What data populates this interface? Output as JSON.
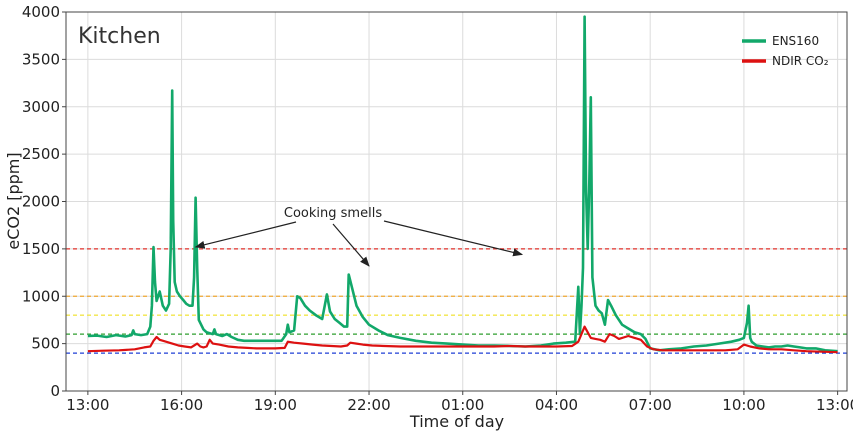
{
  "chart_data": {
    "type": "line",
    "title": "Kitchen",
    "xlabel": "Time of day",
    "ylabel": "eCO2 [ppm]",
    "ylim": [
      0,
      4000
    ],
    "xlim": [
      12.3,
      37.3
    ],
    "x_ticks": [
      {
        "value": 13,
        "label": "13:00"
      },
      {
        "value": 16,
        "label": "16:00"
      },
      {
        "value": 19,
        "label": "19:00"
      },
      {
        "value": 22,
        "label": "22:00"
      },
      {
        "value": 25,
        "label": "01:00"
      },
      {
        "value": 28,
        "label": "04:00"
      },
      {
        "value": 31,
        "label": "07:00"
      },
      {
        "value": 34,
        "label": "10:00"
      },
      {
        "value": 37,
        "label": "13:00"
      }
    ],
    "y_ticks": [
      0,
      500,
      1000,
      1500,
      2000,
      2500,
      3000,
      3500,
      4000
    ],
    "grid": true,
    "legend_position": "top-right",
    "thresholds": [
      {
        "value": 400,
        "color": "#1f3fd6"
      },
      {
        "value": 600,
        "color": "#2e9e2e"
      },
      {
        "value": 800,
        "color": "#f2e64a"
      },
      {
        "value": 1000,
        "color": "#f0a830"
      },
      {
        "value": 1500,
        "color": "#e0302a"
      }
    ],
    "series": [
      {
        "name": "ENS160",
        "color": "#12a86a",
        "points": [
          [
            13.0,
            580
          ],
          [
            13.3,
            585
          ],
          [
            13.6,
            570
          ],
          [
            13.9,
            590
          ],
          [
            14.2,
            575
          ],
          [
            14.4,
            590
          ],
          [
            14.45,
            640
          ],
          [
            14.5,
            600
          ],
          [
            14.7,
            590
          ],
          [
            14.9,
            600
          ],
          [
            15.0,
            680
          ],
          [
            15.05,
            900
          ],
          [
            15.1,
            1520
          ],
          [
            15.15,
            1150
          ],
          [
            15.2,
            950
          ],
          [
            15.3,
            1050
          ],
          [
            15.4,
            900
          ],
          [
            15.5,
            850
          ],
          [
            15.6,
            920
          ],
          [
            15.65,
            1500
          ],
          [
            15.7,
            3170
          ],
          [
            15.73,
            1800
          ],
          [
            15.78,
            1150
          ],
          [
            15.85,
            1050
          ],
          [
            15.95,
            1000
          ],
          [
            16.05,
            960
          ],
          [
            16.15,
            920
          ],
          [
            16.25,
            900
          ],
          [
            16.35,
            900
          ],
          [
            16.4,
            1200
          ],
          [
            16.45,
            2040
          ],
          [
            16.5,
            1300
          ],
          [
            16.55,
            750
          ],
          [
            16.7,
            650
          ],
          [
            16.8,
            620
          ],
          [
            16.9,
            610
          ],
          [
            17.0,
            600
          ],
          [
            17.05,
            650
          ],
          [
            17.1,
            600
          ],
          [
            17.3,
            580
          ],
          [
            17.45,
            600
          ],
          [
            17.6,
            570
          ],
          [
            17.8,
            540
          ],
          [
            18.0,
            530
          ],
          [
            18.3,
            530
          ],
          [
            18.6,
            530
          ],
          [
            18.9,
            530
          ],
          [
            19.2,
            530
          ],
          [
            19.35,
            600
          ],
          [
            19.4,
            700
          ],
          [
            19.45,
            620
          ],
          [
            19.6,
            640
          ],
          [
            19.7,
            1000
          ],
          [
            19.8,
            980
          ],
          [
            19.95,
            900
          ],
          [
            20.1,
            850
          ],
          [
            20.3,
            800
          ],
          [
            20.5,
            760
          ],
          [
            20.65,
            1020
          ],
          [
            20.75,
            840
          ],
          [
            20.9,
            760
          ],
          [
            21.05,
            720
          ],
          [
            21.2,
            680
          ],
          [
            21.3,
            680
          ],
          [
            21.35,
            1230
          ],
          [
            21.45,
            1100
          ],
          [
            21.6,
            900
          ],
          [
            21.8,
            780
          ],
          [
            22.0,
            700
          ],
          [
            22.3,
            640
          ],
          [
            22.6,
            590
          ],
          [
            23.0,
            560
          ],
          [
            23.5,
            530
          ],
          [
            24.0,
            510
          ],
          [
            24.5,
            500
          ],
          [
            25.0,
            490
          ],
          [
            25.5,
            480
          ],
          [
            26.0,
            480
          ],
          [
            26.5,
            475
          ],
          [
            27.0,
            470
          ],
          [
            27.5,
            480
          ],
          [
            27.9,
            500
          ],
          [
            28.3,
            510
          ],
          [
            28.6,
            520
          ],
          [
            28.7,
            1100
          ],
          [
            28.75,
            600
          ],
          [
            28.8,
            900
          ],
          [
            28.85,
            1300
          ],
          [
            28.9,
            3950
          ],
          [
            28.95,
            2100
          ],
          [
            29.0,
            1500
          ],
          [
            29.05,
            2200
          ],
          [
            29.1,
            3100
          ],
          [
            29.15,
            1200
          ],
          [
            29.25,
            900
          ],
          [
            29.35,
            850
          ],
          [
            29.45,
            820
          ],
          [
            29.55,
            700
          ],
          [
            29.65,
            960
          ],
          [
            29.75,
            900
          ],
          [
            29.9,
            800
          ],
          [
            30.1,
            700
          ],
          [
            30.3,
            660
          ],
          [
            30.5,
            620
          ],
          [
            30.7,
            600
          ],
          [
            30.85,
            550
          ],
          [
            31.0,
            450
          ],
          [
            31.3,
            430
          ],
          [
            31.6,
            440
          ],
          [
            32.0,
            450
          ],
          [
            32.4,
            470
          ],
          [
            32.8,
            480
          ],
          [
            33.2,
            500
          ],
          [
            33.6,
            520
          ],
          [
            33.85,
            540
          ],
          [
            34.0,
            560
          ],
          [
            34.1,
            720
          ],
          [
            34.15,
            900
          ],
          [
            34.2,
            560
          ],
          [
            34.25,
            520
          ],
          [
            34.4,
            480
          ],
          [
            34.6,
            470
          ],
          [
            34.8,
            460
          ],
          [
            35.0,
            470
          ],
          [
            35.2,
            470
          ],
          [
            35.4,
            480
          ],
          [
            35.6,
            470
          ],
          [
            35.8,
            460
          ],
          [
            36.0,
            450
          ],
          [
            36.3,
            450
          ],
          [
            36.6,
            430
          ],
          [
            37.0,
            420
          ]
        ]
      },
      {
        "name": "NDIR CO₂",
        "color": "#dd1111",
        "points": [
          [
            13.0,
            420
          ],
          [
            13.5,
            425
          ],
          [
            14.0,
            430
          ],
          [
            14.5,
            440
          ],
          [
            14.8,
            460
          ],
          [
            15.0,
            470
          ],
          [
            15.1,
            530
          ],
          [
            15.2,
            570
          ],
          [
            15.3,
            540
          ],
          [
            15.5,
            520
          ],
          [
            15.7,
            500
          ],
          [
            15.9,
            480
          ],
          [
            16.1,
            470
          ],
          [
            16.3,
            460
          ],
          [
            16.4,
            480
          ],
          [
            16.5,
            500
          ],
          [
            16.6,
            470
          ],
          [
            16.7,
            460
          ],
          [
            16.8,
            470
          ],
          [
            16.9,
            540
          ],
          [
            17.0,
            500
          ],
          [
            17.2,
            490
          ],
          [
            17.5,
            470
          ],
          [
            17.8,
            460
          ],
          [
            18.1,
            455
          ],
          [
            18.4,
            450
          ],
          [
            18.7,
            450
          ],
          [
            19.0,
            450
          ],
          [
            19.3,
            455
          ],
          [
            19.4,
            520
          ],
          [
            19.6,
            510
          ],
          [
            19.9,
            500
          ],
          [
            20.2,
            490
          ],
          [
            20.5,
            480
          ],
          [
            20.8,
            475
          ],
          [
            21.1,
            470
          ],
          [
            21.3,
            480
          ],
          [
            21.4,
            510
          ],
          [
            21.6,
            500
          ],
          [
            21.8,
            490
          ],
          [
            22.1,
            480
          ],
          [
            22.5,
            475
          ],
          [
            23.0,
            470
          ],
          [
            23.5,
            470
          ],
          [
            24.0,
            470
          ],
          [
            24.5,
            470
          ],
          [
            25.0,
            470
          ],
          [
            25.5,
            470
          ],
          [
            26.0,
            470
          ],
          [
            26.5,
            475
          ],
          [
            27.0,
            470
          ],
          [
            27.5,
            470
          ],
          [
            28.0,
            470
          ],
          [
            28.5,
            475
          ],
          [
            28.7,
            520
          ],
          [
            28.8,
            600
          ],
          [
            28.9,
            680
          ],
          [
            29.0,
            620
          ],
          [
            29.1,
            560
          ],
          [
            29.25,
            550
          ],
          [
            29.4,
            540
          ],
          [
            29.55,
            520
          ],
          [
            29.7,
            600
          ],
          [
            29.85,
            580
          ],
          [
            30.0,
            550
          ],
          [
            30.3,
            580
          ],
          [
            30.5,
            560
          ],
          [
            30.7,
            540
          ],
          [
            30.9,
            470
          ],
          [
            31.1,
            440
          ],
          [
            31.4,
            430
          ],
          [
            31.8,
            430
          ],
          [
            32.2,
            430
          ],
          [
            32.6,
            430
          ],
          [
            33.0,
            430
          ],
          [
            33.4,
            430
          ],
          [
            33.8,
            440
          ],
          [
            34.0,
            490
          ],
          [
            34.2,
            470
          ],
          [
            34.5,
            450
          ],
          [
            34.8,
            440
          ],
          [
            35.2,
            440
          ],
          [
            35.6,
            430
          ],
          [
            36.0,
            420
          ],
          [
            36.5,
            415
          ],
          [
            37.0,
            410
          ]
        ]
      }
    ],
    "annotation": {
      "text": "Cooking smells",
      "arrow_targets": [
        [
          16.45,
          1520
        ],
        [
          22.0,
          1320
        ],
        [
          26.9,
          1440
        ]
      ]
    }
  }
}
